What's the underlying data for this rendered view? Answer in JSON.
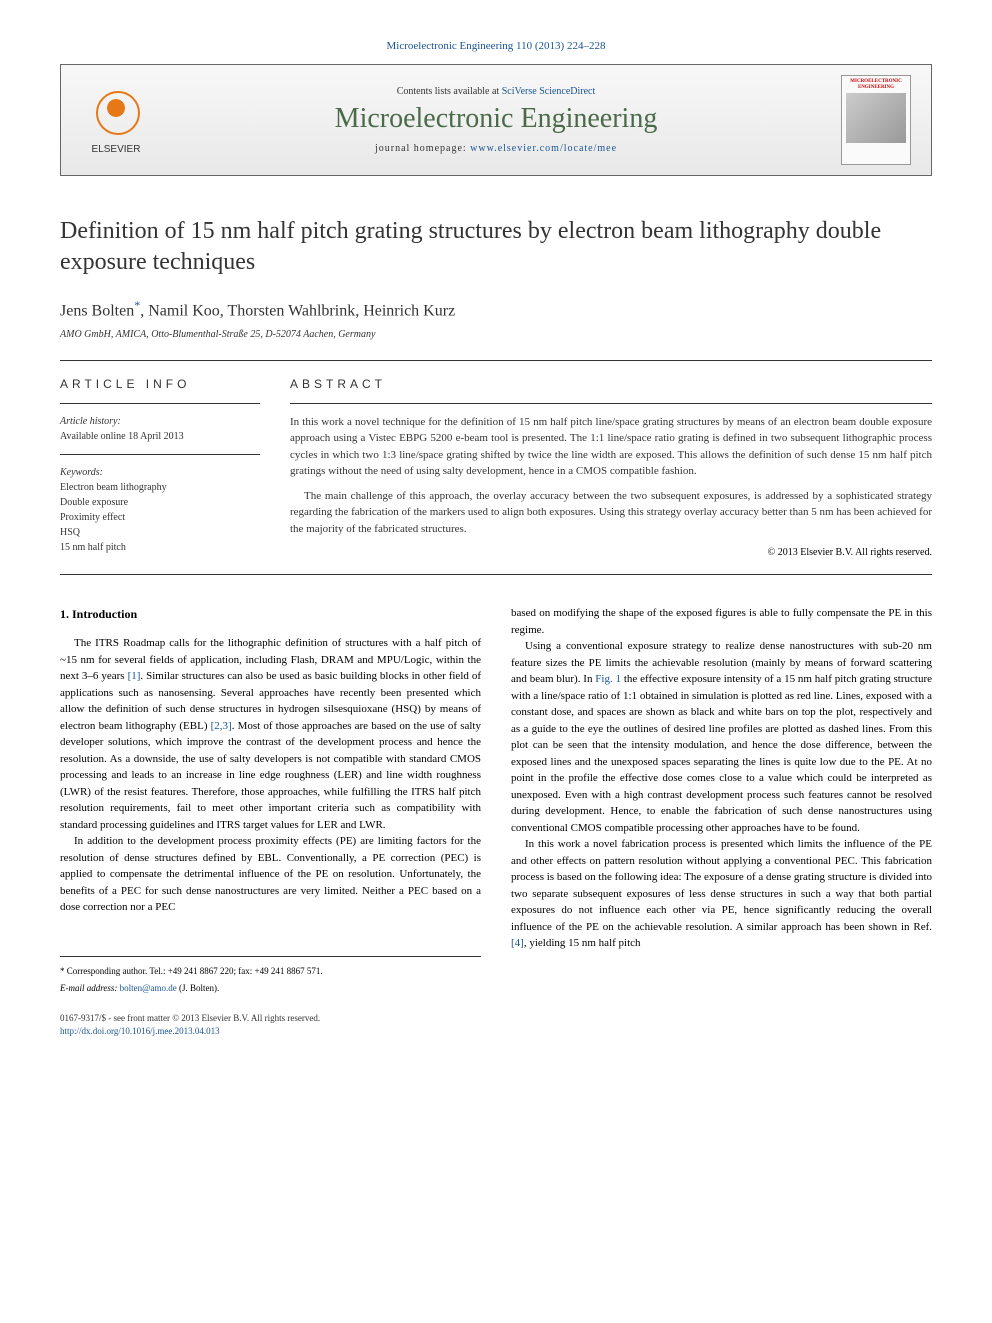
{
  "citation": "Microelectronic Engineering 110 (2013) 224–228",
  "banner": {
    "contents_prefix": "Contents lists available at ",
    "contents_link": "SciVerse ScienceDirect",
    "journal_title": "Microelectronic Engineering",
    "homepage_prefix": "journal homepage: ",
    "homepage_link": "www.elsevier.com/locate/mee",
    "publisher": "ELSEVIER",
    "cover_label": "MICROELECTRONIC ENGINEERING"
  },
  "article": {
    "title": "Definition of 15 nm half pitch grating structures by electron beam lithography double exposure techniques",
    "authors": "Jens Bolten",
    "authors_rest": ", Namil Koo, Thorsten Wahlbrink, Heinrich Kurz",
    "corr_symbol": "*",
    "affiliation": "AMO GmbH, AMICA, Otto-Blumenthal-Straße 25, D-52074 Aachen, Germany"
  },
  "article_info": {
    "header": "ARTICLE INFO",
    "history_label": "Article history:",
    "history_value": "Available online 18 April 2013",
    "keywords_label": "Keywords:",
    "keywords": [
      "Electron beam lithography",
      "Double exposure",
      "Proximity effect",
      "HSQ",
      "15 nm half pitch"
    ]
  },
  "abstract": {
    "header": "ABSTRACT",
    "p1": "In this work a novel technique for the definition of 15 nm half pitch line/space grating structures by means of an electron beam double exposure approach using a Vistec EBPG 5200 e-beam tool is presented. The 1:1 line/space ratio grating is defined in two subsequent lithographic process cycles in which two 1:3 line/space grating shifted by twice the line width are exposed. This allows the definition of such dense 15 nm half pitch gratings without the need of using salty development, hence in a CMOS compatible fashion.",
    "p2": "The main challenge of this approach, the overlay accuracy between the two subsequent exposures, is addressed by a sophisticated strategy regarding the fabrication of the markers used to align both exposures. Using this strategy overlay accuracy better than 5 nm has been achieved for the majority of the fabricated structures.",
    "copyright": "© 2013 Elsevier B.V. All rights reserved."
  },
  "intro": {
    "heading": "1. Introduction",
    "col1_p1": "The ITRS Roadmap calls for the lithographic definition of structures with a half pitch of ~15 nm for several fields of application, including Flash, DRAM and MPU/Logic, within the next 3–6 years [1]. Similar structures can also be used as basic building blocks in other field of applications such as nanosensing. Several approaches have recently been presented which allow the definition of such dense structures in hydrogen silsesquioxane (HSQ) by means of electron beam lithography (EBL) [2,3]. Most of those approaches are based on the use of salty developer solutions, which improve the contrast of the development process and hence the resolution. As a downside, the use of salty developers is not compatible with standard CMOS processing and leads to an increase in line edge roughness (LER) and line width roughness (LWR) of the resist features. Therefore, those approaches, while fulfilling the ITRS half pitch resolution requirements, fail to meet other important criteria such as compatibility with standard processing guidelines and ITRS target values for LER and LWR.",
    "col1_p2": "In addition to the development process proximity effects (PE) are limiting factors for the resolution of dense structures defined by EBL. Conventionally, a PE correction (PEC) is applied to compensate the detrimental influence of the PE on resolution. Unfortunately, the benefits of a PEC for such dense nanostructures are very limited. Neither a PEC based on a dose correction nor a PEC",
    "col2_p1": "based on modifying the shape of the exposed figures is able to fully compensate the PE in this regime.",
    "col2_p2": "Using a conventional exposure strategy to realize dense nanostructures with sub-20 nm feature sizes the PE limits the achievable resolution (mainly by means of forward scattering and beam blur). In Fig. 1 the effective exposure intensity of a 15 nm half pitch grating structure with a line/space ratio of 1:1 obtained in simulation is plotted as red line. Lines, exposed with a constant dose, and spaces are shown as black and white bars on top the plot, respectively and as a guide to the eye the outlines of desired line profiles are plotted as dashed lines. From this plot can be seen that the intensity modulation, and hence the dose difference, between the exposed lines and the unexposed spaces separating the lines is quite low due to the PE. At no point in the profile the effective dose comes close to a value which could be interpreted as unexposed. Even with a high contrast development process such features cannot be resolved during development. Hence, to enable the fabrication of such dense nanostructures using conventional CMOS compatible processing other approaches have to be found.",
    "col2_p3": "In this work a novel fabrication process is presented which limits the influence of the PE and other effects on pattern resolution without applying a conventional PEC. This fabrication process is based on the following idea: The exposure of a dense grating structure is divided into two separate subsequent exposures of less dense structures in such a way that both partial exposures do not influence each other via PE, hence significantly reducing the overall influence of the PE on the achievable resolution. A similar approach has been shown in Ref. [4], yielding 15 nm half pitch"
  },
  "footer": {
    "corr_text": "Corresponding author. Tel.: +49 241 8867 220; fax: +49 241 8867 571.",
    "email_label": "E-mail address: ",
    "email": "bolten@amo.de",
    "email_suffix": " (J. Bolten).",
    "issn": "0167-9317/$ - see front matter © 2013 Elsevier B.V. All rights reserved.",
    "doi": "http://dx.doi.org/10.1016/j.mee.2013.04.013"
  }
}
